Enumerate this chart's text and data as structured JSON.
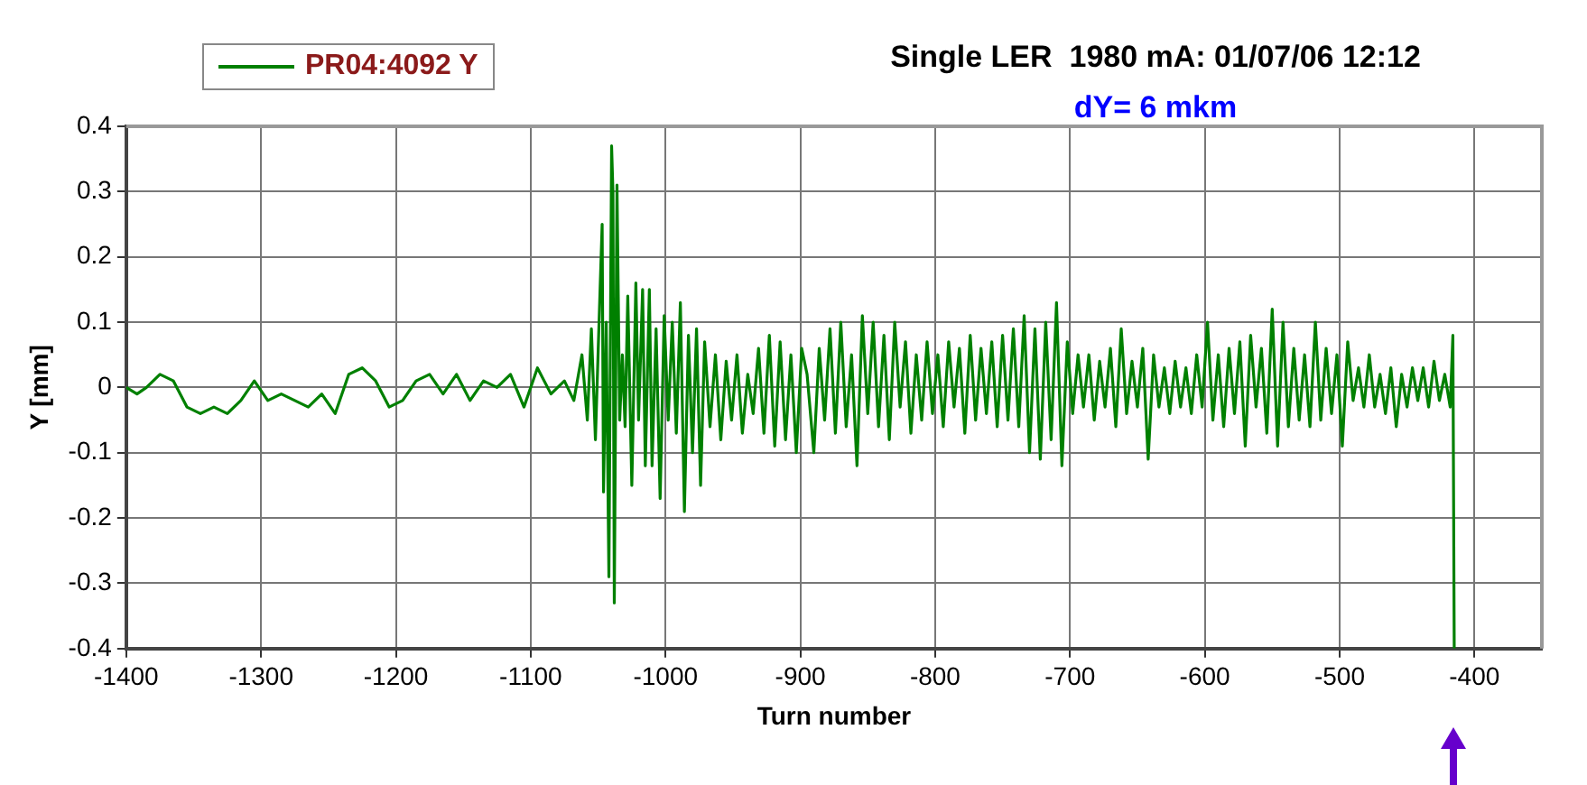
{
  "chart_data": {
    "type": "line",
    "title": "Single LER  1980 mA: 01/07/06 12:12",
    "subtitle": "dY= 6 mkm",
    "xlabel": "Turn number",
    "ylabel": "Y [mm]",
    "xlim": [
      -1400,
      -350
    ],
    "xticks": [
      -1400,
      -1300,
      -1200,
      -1100,
      -1000,
      -900,
      -800,
      -700,
      -600,
      -500,
      -400
    ],
    "ylim": [
      -0.4,
      0.4
    ],
    "yticks": [
      -0.4,
      -0.3,
      -0.2,
      -0.1,
      0,
      0.1,
      0.2,
      0.3,
      0.4
    ],
    "grid": true,
    "legend": "top left",
    "marker": "none",
    "line_style": "solid",
    "series": [
      {
        "name": "PR04:4092 Y",
        "color": "#008000",
        "x": [
          -1400,
          -1392,
          -1385,
          -1375,
          -1365,
          -1355,
          -1345,
          -1335,
          -1325,
          -1315,
          -1305,
          -1295,
          -1285,
          -1275,
          -1265,
          -1255,
          -1245,
          -1235,
          -1225,
          -1215,
          -1205,
          -1195,
          -1185,
          -1175,
          -1165,
          -1155,
          -1145,
          -1135,
          -1125,
          -1115,
          -1105,
          -1095,
          -1085,
          -1075,
          -1068,
          -1062,
          -1058,
          -1055,
          -1052,
          -1049,
          -1047,
          -1046,
          -1044,
          -1042,
          -1040,
          -1039,
          -1038,
          -1036,
          -1034,
          -1032,
          -1030,
          -1028,
          -1025,
          -1022,
          -1020,
          -1017,
          -1015,
          -1012,
          -1010,
          -1007,
          -1004,
          -1001,
          -998,
          -995,
          -992,
          -989,
          -986,
          -983,
          -980,
          -977,
          -974,
          -971,
          -967,
          -963,
          -959,
          -955,
          -951,
          -947,
          -943,
          -939,
          -935,
          -931,
          -927,
          -923,
          -919,
          -915,
          -911,
          -907,
          -903,
          -899,
          -895,
          -890,
          -886,
          -882,
          -878,
          -874,
          -870,
          -866,
          -862,
          -858,
          -854,
          -850,
          -846,
          -842,
          -838,
          -834,
          -830,
          -826,
          -822,
          -818,
          -814,
          -810,
          -806,
          -802,
          -798,
          -794,
          -790,
          -786,
          -782,
          -778,
          -774,
          -770,
          -766,
          -762,
          -758,
          -754,
          -750,
          -746,
          -742,
          -738,
          -734,
          -730,
          -726,
          -722,
          -718,
          -714,
          -710,
          -706,
          -702,
          -698,
          -694,
          -690,
          -686,
          -682,
          -678,
          -674,
          -670,
          -666,
          -662,
          -658,
          -654,
          -650,
          -646,
          -642,
          -638,
          -634,
          -630,
          -626,
          -622,
          -618,
          -614,
          -610,
          -606,
          -602,
          -598,
          -594,
          -590,
          -586,
          -582,
          -578,
          -574,
          -570,
          -566,
          -562,
          -558,
          -554,
          -550,
          -546,
          -542,
          -538,
          -534,
          -530,
          -526,
          -522,
          -518,
          -514,
          -510,
          -506,
          -502,
          -498,
          -494,
          -490,
          -486,
          -482,
          -478,
          -474,
          -470,
          -466,
          -462,
          -458,
          -454,
          -450,
          -446,
          -442,
          -438,
          -434,
          -430,
          -426,
          -422,
          -418,
          -416,
          -415
        ],
        "values": [
          0,
          -0.01,
          0,
          0.02,
          0.01,
          -0.03,
          -0.04,
          -0.03,
          -0.04,
          -0.02,
          0.01,
          -0.02,
          -0.01,
          -0.02,
          -0.03,
          -0.01,
          -0.04,
          0.02,
          0.03,
          0.01,
          -0.03,
          -0.02,
          0.01,
          0.02,
          -0.01,
          0.02,
          -0.02,
          0.01,
          0,
          0.02,
          -0.03,
          0.03,
          -0.01,
          0.01,
          -0.02,
          0.05,
          -0.05,
          0.09,
          -0.08,
          0.12,
          0.25,
          -0.16,
          0.1,
          -0.29,
          0.37,
          0.3,
          -0.33,
          0.31,
          -0.05,
          0.05,
          -0.06,
          0.14,
          -0.15,
          0.16,
          -0.05,
          0.15,
          -0.12,
          0.15,
          -0.12,
          0.09,
          -0.17,
          0.11,
          -0.05,
          0.1,
          -0.07,
          0.13,
          -0.19,
          0.08,
          -0.1,
          0.09,
          -0.15,
          0.07,
          -0.06,
          0.05,
          -0.08,
          0.04,
          -0.05,
          0.05,
          -0.07,
          0.02,
          -0.04,
          0.06,
          -0.07,
          0.08,
          -0.09,
          0.07,
          -0.08,
          0.05,
          -0.1,
          0.06,
          0.02,
          -0.1,
          0.06,
          -0.05,
          0.09,
          -0.07,
          0.1,
          -0.06,
          0.05,
          -0.12,
          0.11,
          -0.04,
          0.1,
          -0.06,
          0.08,
          -0.08,
          0.1,
          -0.03,
          0.07,
          -0.07,
          0.05,
          -0.05,
          0.07,
          -0.04,
          0.05,
          -0.06,
          0.07,
          -0.03,
          0.06,
          -0.07,
          0.08,
          -0.05,
          0.06,
          -0.04,
          0.07,
          -0.06,
          0.08,
          -0.05,
          0.09,
          -0.06,
          0.11,
          -0.1,
          0.09,
          -0.11,
          0.1,
          -0.08,
          0.13,
          -0.12,
          0.07,
          -0.04,
          0.05,
          -0.03,
          0.05,
          -0.05,
          0.04,
          -0.03,
          0.06,
          -0.06,
          0.09,
          -0.04,
          0.04,
          -0.03,
          0.06,
          -0.11,
          0.05,
          -0.03,
          0.03,
          -0.04,
          0.04,
          -0.03,
          0.03,
          -0.04,
          0.05,
          -0.03,
          0.1,
          -0.05,
          0.05,
          -0.06,
          0.06,
          -0.04,
          0.07,
          -0.09,
          0.08,
          -0.03,
          0.06,
          -0.07,
          0.12,
          -0.09,
          0.1,
          -0.06,
          0.06,
          -0.05,
          0.05,
          -0.06,
          0.1,
          -0.05,
          0.06,
          -0.04,
          0.05,
          -0.09,
          0.07,
          -0.02,
          0.03,
          -0.03,
          0.05,
          -0.03,
          0.02,
          -0.04,
          0.03,
          -0.06,
          0.02,
          -0.03,
          0.03,
          -0.02,
          0.03,
          -0.03,
          0.04,
          -0.02,
          0.02,
          -0.03,
          0.08,
          -0.4
        ]
      }
    ]
  }
}
